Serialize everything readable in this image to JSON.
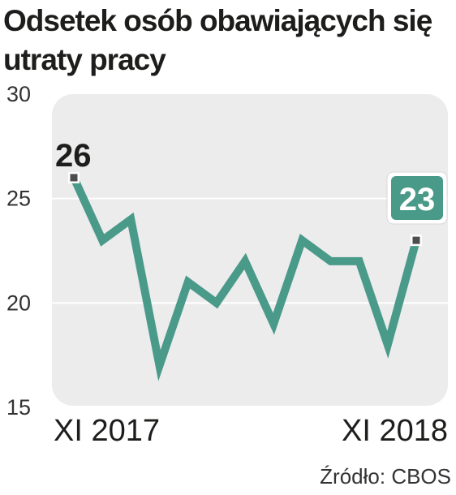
{
  "title_lines": [
    "Odsetek osób obawiających się",
    "utraty pracy"
  ],
  "source": "Źródło: CBOS",
  "colors": {
    "line": "#4a9a8a",
    "plot_background": "#ececec",
    "text": "#1d1d1b",
    "marker": "#4d4d4d",
    "label_box": "#4a9a8a"
  },
  "chart_data": {
    "type": "line",
    "title": "Odsetek osób obawiających się utraty pracy",
    "xlabel": "",
    "ylabel": "",
    "x_tick_labels": [
      "XI 2017",
      "XI 2018"
    ],
    "y_ticks": [
      15,
      20,
      25,
      30
    ],
    "ylim": [
      15,
      30
    ],
    "grid": true,
    "series": [
      {
        "values": [
          26,
          23,
          24,
          17,
          21,
          20,
          22,
          19,
          23,
          22,
          22,
          18,
          23
        ]
      }
    ],
    "annotations": [
      {
        "index": 0,
        "text": "26",
        "style": "plain"
      },
      {
        "index": 12,
        "text": "23",
        "style": "boxed"
      }
    ]
  }
}
